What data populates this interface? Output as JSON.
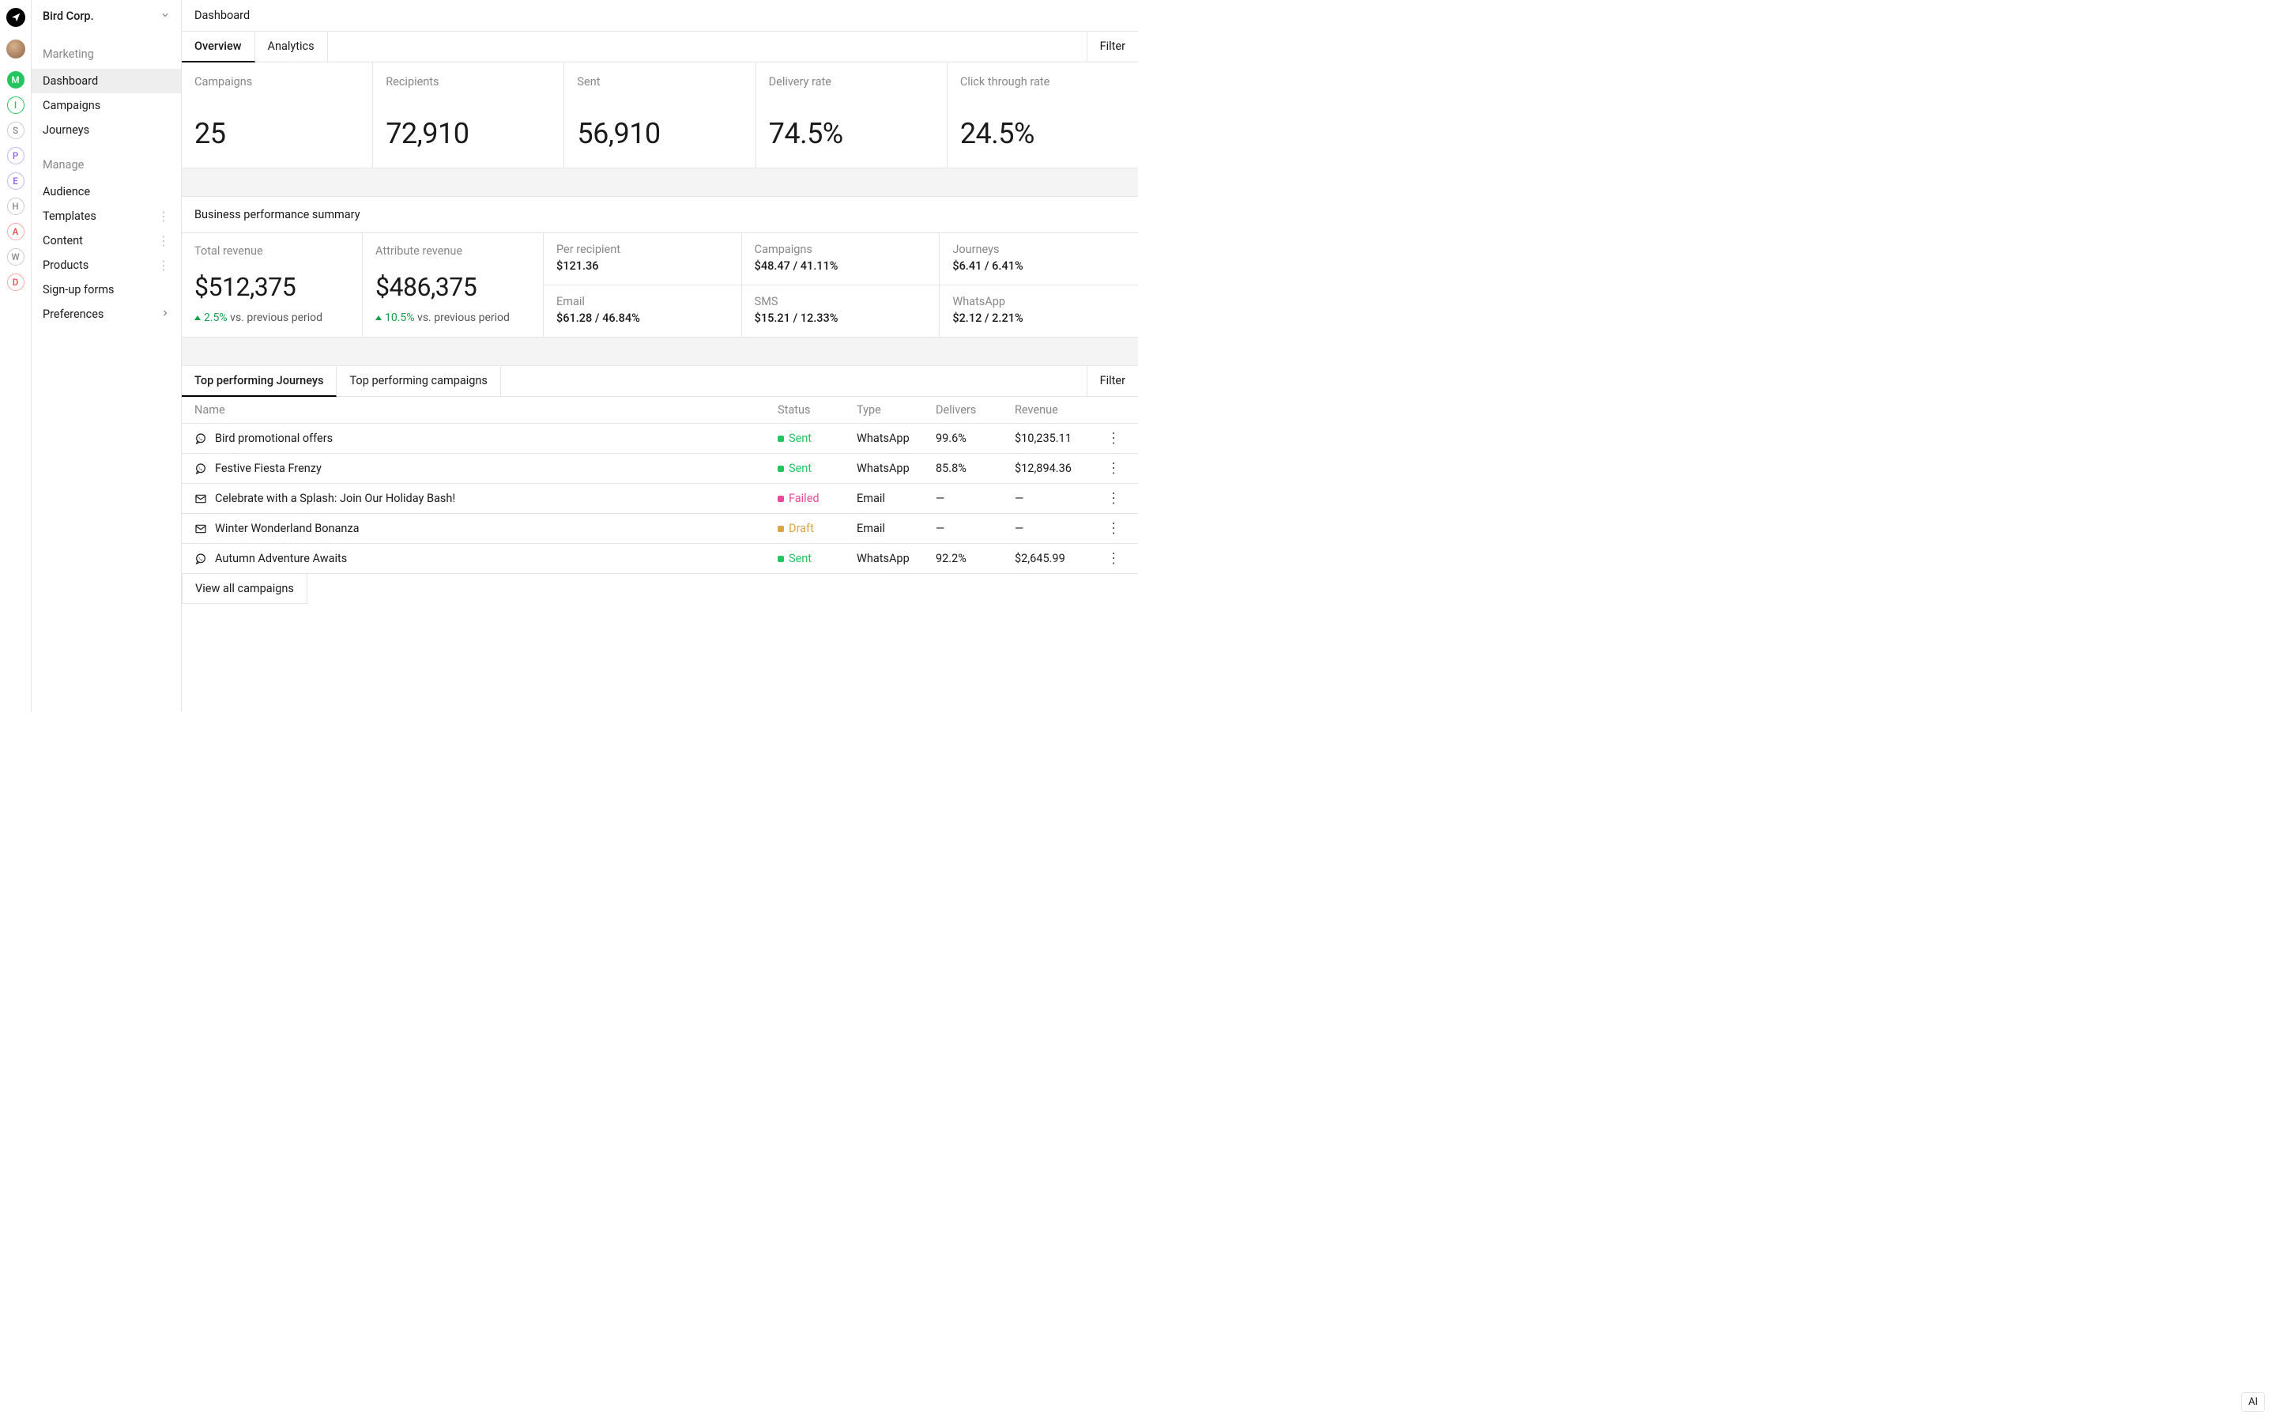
{
  "workspace": {
    "name": "Bird Corp."
  },
  "rail": {
    "items": [
      {
        "letter": "M",
        "bg": "#22c55e",
        "fg": "#ffffff",
        "border": "#22c55e"
      },
      {
        "letter": "I",
        "bg": "#ffffff",
        "fg": "#22c55e",
        "border": "#22c55e"
      },
      {
        "letter": "S",
        "bg": "#ffffff",
        "fg": "#888888",
        "border": "#cccccc"
      },
      {
        "letter": "P",
        "bg": "#ffffff",
        "fg": "#8b5cf6",
        "border": "#c4b5fd"
      },
      {
        "letter": "E",
        "bg": "#ffffff",
        "fg": "#8b5cf6",
        "border": "#c4b5fd"
      },
      {
        "letter": "H",
        "bg": "#ffffff",
        "fg": "#888888",
        "border": "#cccccc"
      },
      {
        "letter": "A",
        "bg": "#ffffff",
        "fg": "#ef4444",
        "border": "#fca5a5"
      },
      {
        "letter": "W",
        "bg": "#ffffff",
        "fg": "#888888",
        "border": "#cccccc"
      },
      {
        "letter": "D",
        "bg": "#ffffff",
        "fg": "#ef4444",
        "border": "#fca5a5"
      }
    ]
  },
  "sidebar": {
    "sections": [
      {
        "title": "Marketing",
        "items": [
          {
            "label": "Dashboard",
            "active": true,
            "more": false,
            "chev": false
          },
          {
            "label": "Campaigns",
            "active": false,
            "more": false,
            "chev": false
          },
          {
            "label": "Journeys",
            "active": false,
            "more": false,
            "chev": false
          }
        ]
      },
      {
        "title": "Manage",
        "items": [
          {
            "label": "Audience",
            "active": false,
            "more": false,
            "chev": false
          },
          {
            "label": "Templates",
            "active": false,
            "more": true,
            "chev": false
          },
          {
            "label": "Content",
            "active": false,
            "more": true,
            "chev": false
          },
          {
            "label": "Products",
            "active": false,
            "more": true,
            "chev": false
          },
          {
            "label": "Sign-up forms",
            "active": false,
            "more": false,
            "chev": false
          },
          {
            "label": "Preferences",
            "active": false,
            "more": false,
            "chev": true
          }
        ]
      }
    ]
  },
  "header": {
    "title": "Dashboard"
  },
  "tabs": {
    "items": [
      {
        "label": "Overview",
        "active": true
      },
      {
        "label": "Analytics",
        "active": false
      }
    ],
    "filter_label": "Filter"
  },
  "stats": [
    {
      "label": "Campaigns",
      "value": "25"
    },
    {
      "label": "Recipients",
      "value": "72,910"
    },
    {
      "label": "Sent",
      "value": "56,910"
    },
    {
      "label": "Delivery rate",
      "value": "74.5%"
    },
    {
      "label": "Click through rate",
      "value": "24.5%"
    }
  ],
  "perf": {
    "section_title": "Business performance summary",
    "cards": [
      {
        "label": "Total revenue",
        "value": "$512,375",
        "delta": "2.5%",
        "delta_suffix": "vs. previous period",
        "delta_color": "#1a9e4b"
      },
      {
        "label": "Attribute revenue",
        "value": "$486,375",
        "delta": "10.5%",
        "delta_suffix": "vs. previous period",
        "delta_color": "#1a9e4b"
      }
    ],
    "minis": [
      {
        "label": "Per recipient",
        "value": "$121.36"
      },
      {
        "label": "Campaigns",
        "value": "$48.47 / 41.11%"
      },
      {
        "label": "Journeys",
        "value": "$6.41 / 6.41%"
      },
      {
        "label": "Email",
        "value": "$61.28 / 46.84%"
      },
      {
        "label": "SMS",
        "value": "$15.21 / 12.33%"
      },
      {
        "label": "WhatsApp",
        "value": "$2.12 / 2.21%"
      }
    ]
  },
  "table": {
    "tabs": [
      {
        "label": "Top performing Journeys",
        "active": true
      },
      {
        "label": "Top performing campaigns",
        "active": false
      }
    ],
    "filter_label": "Filter",
    "columns": [
      "Name",
      "Status",
      "Type",
      "Delivers",
      "Revenue"
    ],
    "status_colors": {
      "Sent": "#22c55e",
      "Failed": "#ec4899",
      "Draft": "#d9a441"
    },
    "rows": [
      {
        "icon": "whatsapp",
        "name": "Bird promotional offers",
        "status": "Sent",
        "type": "WhatsApp",
        "delivers": "99.6%",
        "revenue": "$10,235.11"
      },
      {
        "icon": "whatsapp",
        "name": "Festive Fiesta Frenzy",
        "status": "Sent",
        "type": "WhatsApp",
        "delivers": "85.8%",
        "revenue": "$12,894.36"
      },
      {
        "icon": "mail",
        "name": "Celebrate with a Splash: Join Our Holiday Bash!",
        "status": "Failed",
        "type": "Email",
        "delivers": "—",
        "revenue": "—"
      },
      {
        "icon": "mail",
        "name": "Winter Wonderland Bonanza",
        "status": "Draft",
        "type": "Email",
        "delivers": "—",
        "revenue": "—"
      },
      {
        "icon": "whatsapp",
        "name": "Autumn Adventure Awaits",
        "status": "Sent",
        "type": "WhatsApp",
        "delivers": "92.2%",
        "revenue": "$2,645.99"
      }
    ],
    "view_all_label": "View all campaigns"
  },
  "ai_badge": "AI"
}
